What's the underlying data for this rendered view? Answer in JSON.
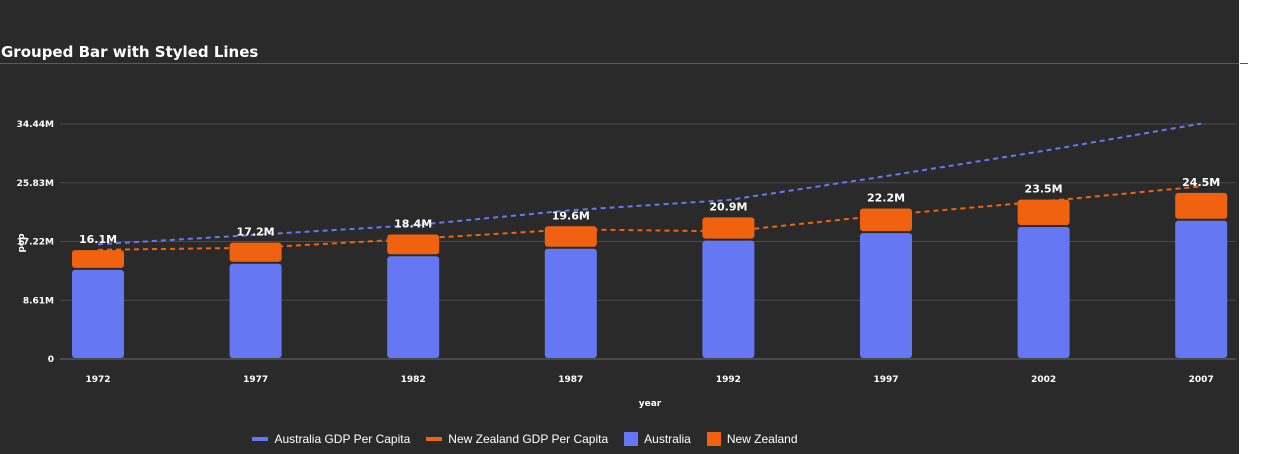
{
  "chart_data": {
    "type": "bar",
    "title": "Grouped Bar with Styled Lines",
    "xlabel": "year",
    "ylabel": "pop",
    "categories": [
      "1972",
      "1977",
      "1982",
      "1987",
      "1992",
      "1997",
      "2002",
      "2007"
    ],
    "y_ticks": [
      "0",
      "8.61M",
      "17.22M",
      "25.83M",
      "34.44M"
    ],
    "ylim": [
      0,
      34440000
    ],
    "stacked": true,
    "grid": true,
    "legend_position": "bottom",
    "series": [
      {
        "name": "Australia",
        "kind": "bar",
        "color": "#6577f2",
        "values": [
          13200000,
          14100000,
          15200000,
          16300000,
          17500000,
          18600000,
          19500000,
          20400000
        ]
      },
      {
        "name": "New Zealand",
        "kind": "bar",
        "color": "#f0620f",
        "values": [
          2900000,
          3100000,
          3200000,
          3300000,
          3400000,
          3600000,
          4000000,
          4100000
        ]
      },
      {
        "name": "Australia GDP Per Capita",
        "kind": "line",
        "style": "dashed",
        "color": "#6577f2",
        "values": [
          16800000,
          18200000,
          19600000,
          21800000,
          23300000,
          26800000,
          30500000,
          34500000
        ]
      },
      {
        "name": "New Zealand GDP Per Capita",
        "kind": "line",
        "style": "dashed",
        "color": "#f0620f",
        "values": [
          16000000,
          16300000,
          17600000,
          19000000,
          18700000,
          21100000,
          23100000,
          25300000
        ]
      }
    ],
    "data_labels": [
      "16.1M",
      "17.2M",
      "18.4M",
      "19.6M",
      "20.9M",
      "22.2M",
      "23.5M",
      "24.5M"
    ]
  }
}
